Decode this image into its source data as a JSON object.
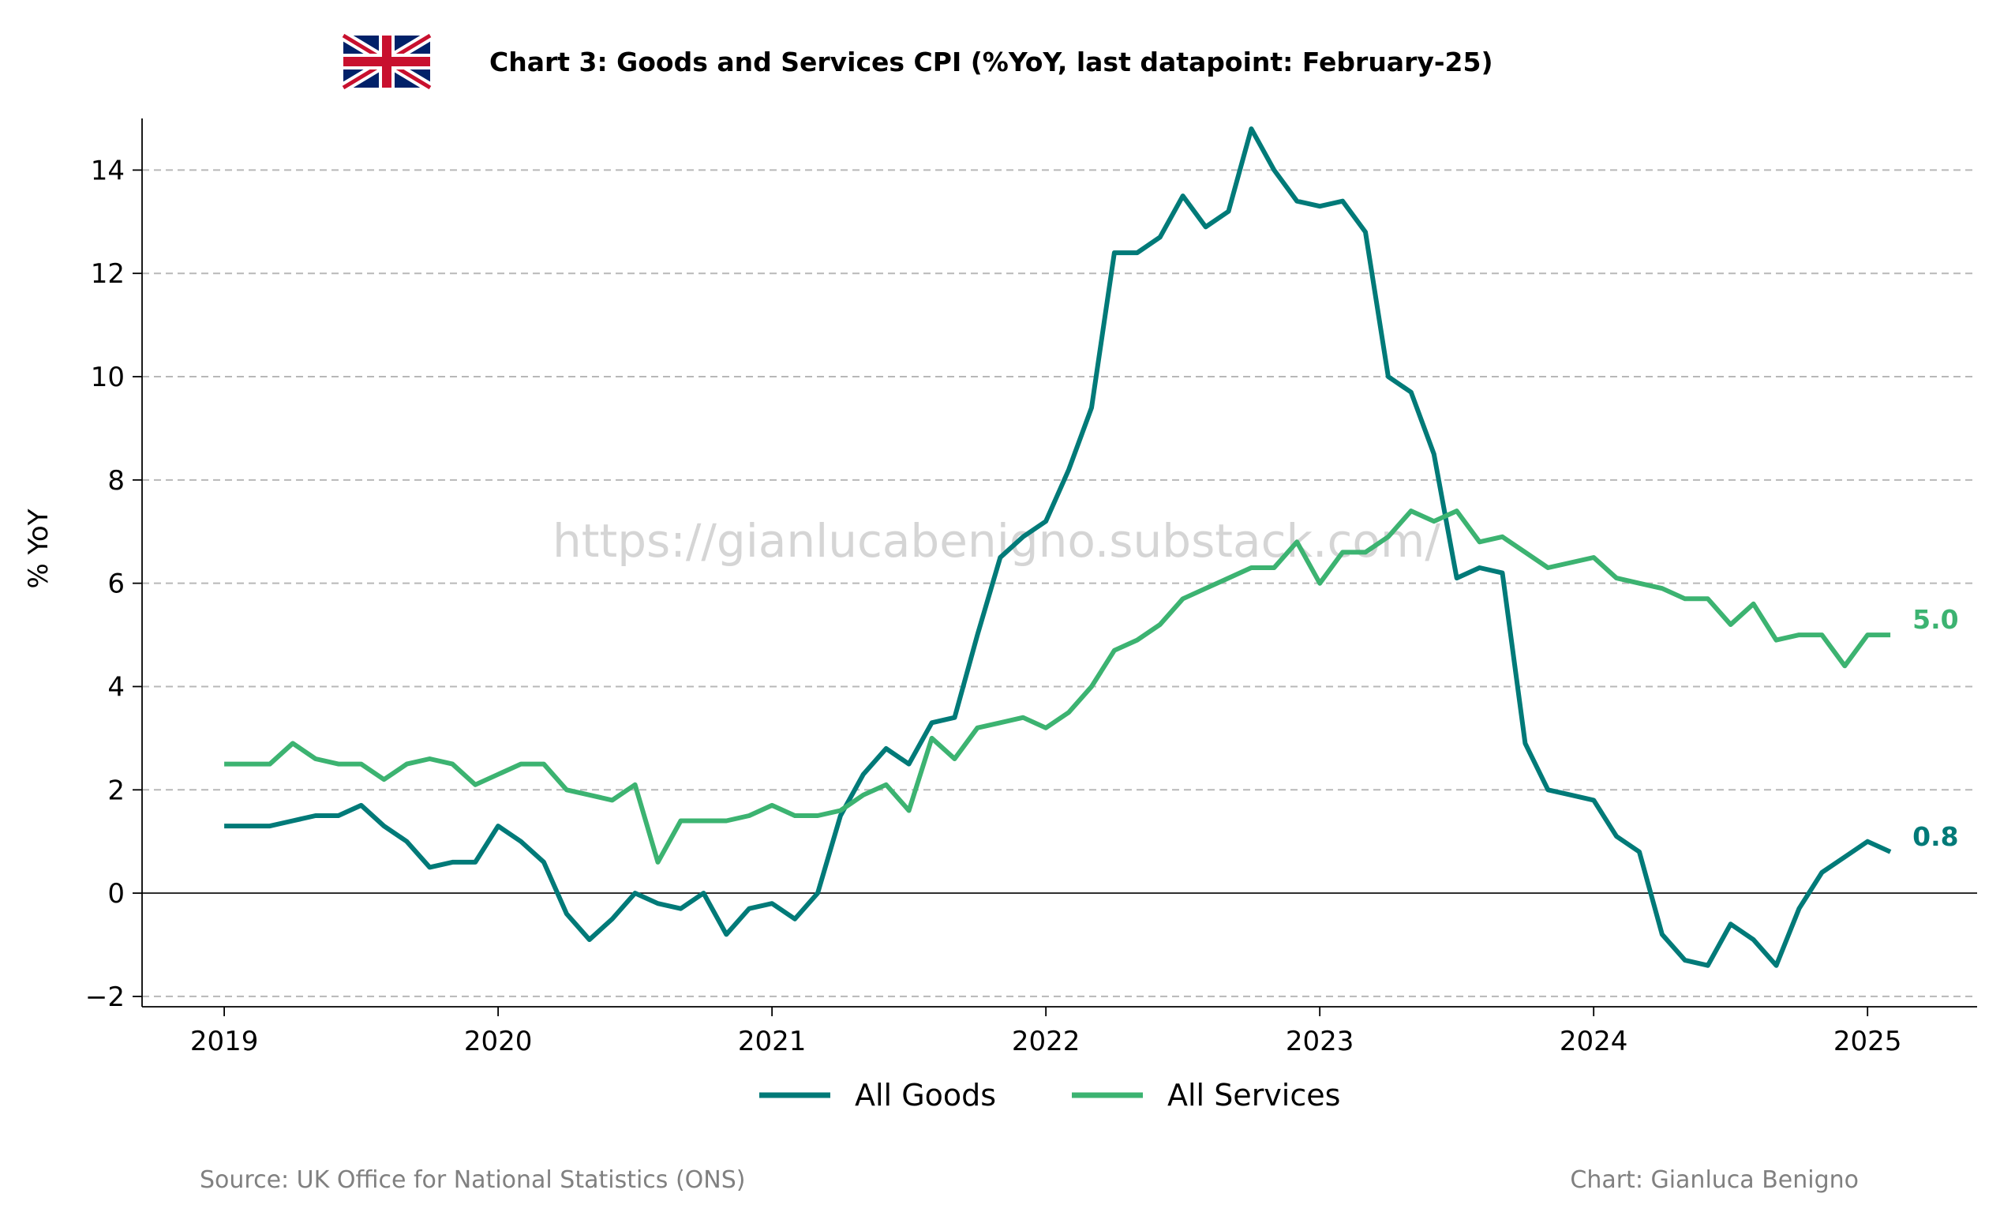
{
  "chart_data": {
    "type": "line",
    "title": "Chart 3: Goods and Services CPI (%YoY, last datapoint: February-25)",
    "ylabel": "% YoY",
    "xlabel": "",
    "ylim": [
      -2.2,
      15
    ],
    "xlim": [
      2018.7,
      2025.4
    ],
    "yticks": [
      -2,
      0,
      2,
      4,
      6,
      8,
      10,
      12,
      14
    ],
    "ytick_labels": [
      "−2",
      "0",
      "2",
      "4",
      "6",
      "8",
      "10",
      "12",
      "14"
    ],
    "xticks": [
      2019,
      2020,
      2021,
      2022,
      2023,
      2024,
      2025
    ],
    "xtick_labels": [
      "2019",
      "2020",
      "2021",
      "2022",
      "2023",
      "2024",
      "2025"
    ],
    "grid": "horizontal dashed",
    "legend_placement": "bottom-center",
    "x_start": "January-19",
    "x_end": "February-25",
    "series": [
      {
        "name": "All Goods",
        "color": "#007a78",
        "end_label": "0.8",
        "values": [
          1.3,
          1.3,
          1.3,
          1.4,
          1.5,
          1.5,
          1.7,
          1.3,
          1.0,
          0.5,
          0.6,
          0.6,
          1.3,
          1.0,
          0.6,
          -0.4,
          -0.9,
          -0.5,
          0.0,
          -0.2,
          -0.3,
          0.0,
          -0.8,
          -0.3,
          -0.2,
          -0.5,
          0.0,
          1.5,
          2.3,
          2.8,
          2.5,
          3.3,
          3.4,
          5.0,
          6.5,
          6.9,
          7.2,
          8.2,
          9.4,
          12.4,
          12.4,
          12.7,
          13.5,
          12.9,
          13.2,
          14.8,
          14.0,
          13.4,
          13.3,
          13.4,
          12.8,
          10.0,
          9.7,
          8.5,
          6.1,
          6.3,
          6.2,
          2.9,
          2.0,
          1.9,
          1.8,
          1.1,
          0.8,
          -0.8,
          -1.3,
          -1.4,
          -0.6,
          -0.9,
          -1.4,
          -0.3,
          0.4,
          0.7,
          1.0,
          0.8
        ]
      },
      {
        "name": "All Services",
        "color": "#3cb371",
        "end_label": "5.0",
        "values": [
          2.5,
          2.5,
          2.5,
          2.9,
          2.6,
          2.5,
          2.5,
          2.2,
          2.5,
          2.6,
          2.5,
          2.1,
          2.3,
          2.5,
          2.5,
          2.0,
          1.9,
          1.8,
          2.1,
          0.6,
          1.4,
          1.4,
          1.4,
          1.5,
          1.7,
          1.5,
          1.5,
          1.6,
          1.9,
          2.1,
          1.6,
          3.0,
          2.6,
          3.2,
          3.3,
          3.4,
          3.2,
          3.5,
          4.0,
          4.7,
          4.9,
          5.2,
          5.7,
          5.9,
          6.1,
          6.3,
          6.3,
          6.8,
          6.0,
          6.6,
          6.6,
          6.9,
          7.4,
          7.2,
          7.4,
          6.8,
          6.9,
          6.6,
          6.3,
          6.4,
          6.5,
          6.1,
          6.0,
          5.9,
          5.7,
          5.7,
          5.2,
          5.6,
          4.9,
          5.0,
          5.0,
          4.4,
          5.0,
          5.0
        ]
      }
    ],
    "watermark": "https://gianlucabenigno.substack.com/",
    "source": "Source: UK Office for National Statistics (ONS)",
    "credit": "Chart: Gianluca Benigno"
  }
}
